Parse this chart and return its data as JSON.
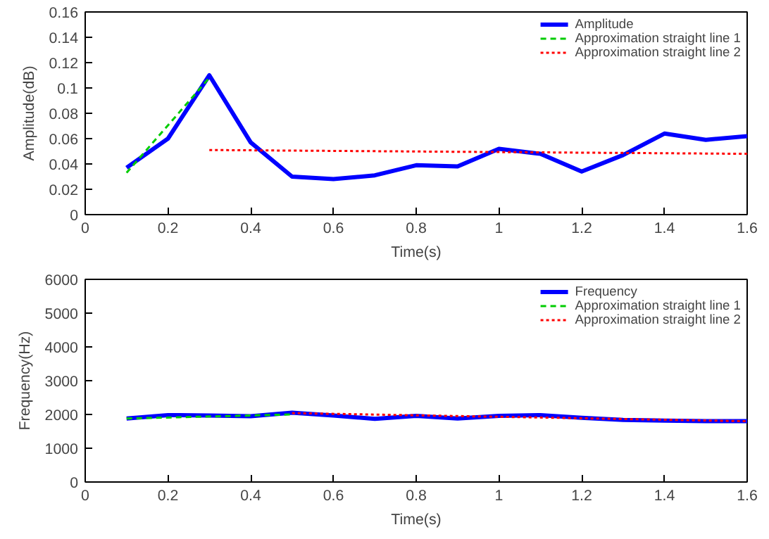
{
  "chart_data": [
    {
      "type": "line",
      "xlabel": "Time(s)",
      "ylabel": "Amplitude(dB)",
      "xlim": [
        0,
        1.6
      ],
      "xticks": [
        0,
        0.2,
        0.4,
        0.6,
        0.8,
        1,
        1.2,
        1.4,
        1.6
      ],
      "ylim": [
        0,
        0.16
      ],
      "yticks": [
        0,
        0.02,
        0.04,
        0.06,
        0.08,
        0.1,
        0.12,
        0.14,
        0.16
      ],
      "grid": false,
      "legend": "top right",
      "series": [
        {
          "name": "Amplitude",
          "color": "#0000ff",
          "line_style": "solid",
          "x": [
            0.1,
            0.2,
            0.3,
            0.4,
            0.5,
            0.6,
            0.7,
            0.8,
            0.9,
            1.0,
            1.1,
            1.2,
            1.3,
            1.4,
            1.5,
            1.6
          ],
          "values": [
            0.037,
            0.06,
            0.11,
            0.057,
            0.03,
            0.028,
            0.031,
            0.039,
            0.038,
            0.052,
            0.048,
            0.034,
            0.047,
            0.064,
            0.059,
            0.062
          ]
        },
        {
          "name": "Approximation straight line 1",
          "color": "#00cc00",
          "line_style": "dashed",
          "x": [
            0.1,
            0.3
          ],
          "values": [
            0.033,
            0.108
          ]
        },
        {
          "name": "Approximation straight line 2",
          "color": "#ff0000",
          "line_style": "dotted",
          "x": [
            0.3,
            1.6
          ],
          "values": [
            0.051,
            0.048
          ]
        }
      ]
    },
    {
      "type": "line",
      "xlabel": "Time(s)",
      "ylabel": "Frequency(Hz)",
      "xlim": [
        0,
        1.6
      ],
      "xticks": [
        0,
        0.2,
        0.4,
        0.6,
        0.8,
        1,
        1.2,
        1.4,
        1.6
      ],
      "ylim": [
        0,
        6000
      ],
      "yticks": [
        0,
        1000,
        2000,
        3000,
        4000,
        5000,
        6000
      ],
      "grid": false,
      "legend": "top right",
      "series": [
        {
          "name": "Frequency",
          "color": "#0000ff",
          "line_style": "solid",
          "x": [
            0.1,
            0.2,
            0.3,
            0.4,
            0.5,
            0.6,
            0.7,
            0.8,
            0.9,
            1.0,
            1.1,
            1.2,
            1.3,
            1.4,
            1.5,
            1.6
          ],
          "values": [
            1880,
            1980,
            1970,
            1950,
            2050,
            1970,
            1870,
            1960,
            1880,
            1960,
            1980,
            1900,
            1840,
            1820,
            1800,
            1800
          ]
        },
        {
          "name": "Approximation straight line 1",
          "color": "#00cc00",
          "line_style": "dashed",
          "x": [
            0.1,
            0.5
          ],
          "values": [
            1880,
            2000
          ]
        },
        {
          "name": "Approximation straight line 2",
          "color": "#ff0000",
          "line_style": "dotted",
          "x": [
            0.5,
            1.6
          ],
          "values": [
            2040,
            1800
          ]
        }
      ]
    }
  ]
}
